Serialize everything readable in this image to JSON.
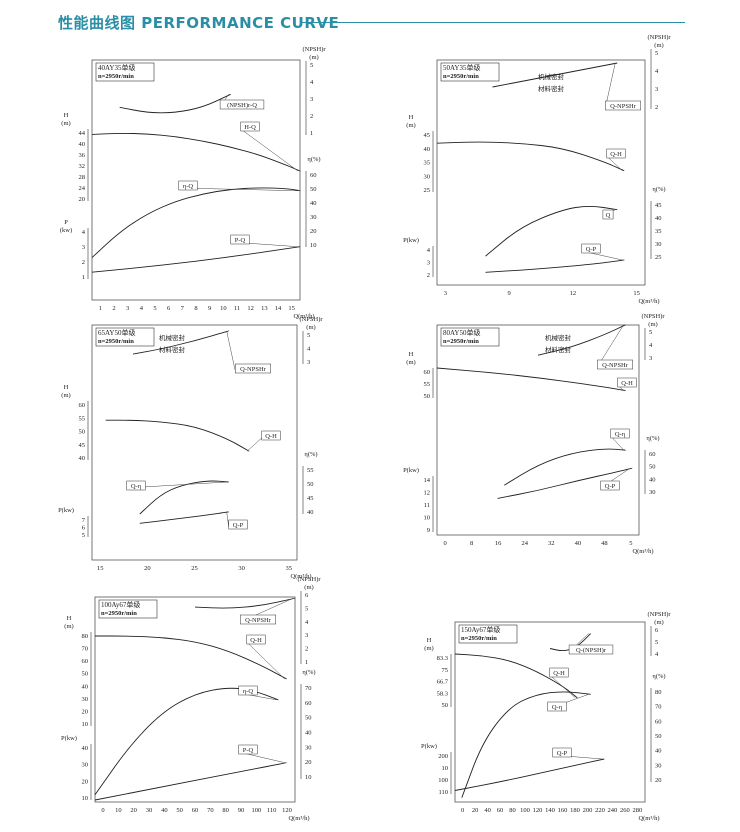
{
  "header": {
    "title": "性能曲线图  PERFORMANCE CURVE"
  },
  "chart_data": [
    {
      "type": "line",
      "model": "40AY35单级",
      "speed": "n=2950r/min",
      "xlabel": "Q(m³/h)",
      "x_ticks": [
        "1",
        "2",
        "3",
        "4",
        "5",
        "6",
        "7",
        "8",
        "9",
        "10",
        "11",
        "12",
        "13",
        "14",
        "15"
      ],
      "left_axes": [
        {
          "label": "H\n(m)",
          "ticks": [
            "44",
            "40",
            "36",
            "32",
            "28",
            "24",
            "20"
          ]
        },
        {
          "label": "P\n(kw)",
          "ticks": [
            "4",
            "3",
            "2",
            "1"
          ]
        }
      ],
      "right_axes": [
        {
          "label": "(NPSH)r\n(m)",
          "ticks": [
            "5",
            "4",
            "3",
            "2",
            "1"
          ]
        },
        {
          "label": "η(%)",
          "ticks": [
            "60",
            "50",
            "40",
            "30",
            "20",
            "10"
          ]
        }
      ],
      "series": [
        {
          "name": "(NPSH)r-Q",
          "x": [
            2,
            4,
            6,
            8,
            10
          ],
          "y": [
            2.5,
            2.2,
            2.2,
            2.5,
            3.2
          ]
        },
        {
          "name": "H-Q",
          "x": [
            0,
            2,
            4,
            6,
            8,
            10,
            12,
            14,
            15
          ],
          "y": [
            42.2,
            42.6,
            42.4,
            41.5,
            40,
            38,
            35.5,
            32,
            30
          ]
        },
        {
          "name": "η-Q",
          "x": [
            0,
            2,
            4,
            6,
            8,
            10,
            12,
            14,
            15
          ],
          "y": [
            3,
            20,
            32,
            40,
            45,
            48,
            49,
            48.5,
            47
          ]
        },
        {
          "name": "P-Q",
          "x": [
            0,
            5,
            10,
            15
          ],
          "y": [
            1.4,
            1.8,
            2.3,
            2.9
          ]
        }
      ]
    },
    {
      "type": "line",
      "model": "50AY35单级",
      "speed": "n=2950r/min",
      "xlabel": "Q(m³/h)",
      "x_ticks": [
        "3",
        "9",
        "12",
        "15"
      ],
      "left_axes": [
        {
          "label": "H\n(m)",
          "ticks": [
            "45",
            "40",
            "35",
            "30",
            "25"
          ]
        },
        {
          "label": "P(kw)",
          "ticks": [
            "4",
            "3",
            "2"
          ]
        }
      ],
      "right_axes": [
        {
          "label": "(NPSH)r\n(m)",
          "ticks": [
            "5",
            "4",
            "3",
            "2"
          ]
        },
        {
          "label": "η(%)",
          "ticks": [
            "45",
            "40",
            "35",
            "30",
            "25"
          ]
        }
      ],
      "annotations": [
        "机械密封",
        "材料密封"
      ],
      "series": [
        {
          "name": "Q-NPSHr",
          "x": [
            7,
            10,
            13,
            16
          ],
          "y": [
            3.1,
            3.5,
            3.9,
            4.3
          ]
        },
        {
          "name": "Q-H",
          "x": [
            3,
            6,
            9,
            12,
            15,
            16.5
          ],
          "y": [
            41,
            41.5,
            41,
            39.5,
            35,
            32
          ]
        },
        {
          "name": "Q",
          "x": [
            6.5,
            9,
            12,
            14,
            16
          ],
          "y": [
            26,
            36,
            42,
            43.5,
            42
          ]
        },
        {
          "name": "Q-P",
          "x": [
            6.5,
            10,
            14,
            16.5
          ],
          "y": [
            2.3,
            2.5,
            2.8,
            3.1
          ]
        }
      ]
    },
    {
      "type": "line",
      "model": "65AY50单级",
      "speed": "n=2950r/min",
      "xlabel": "Q(m³/h)",
      "x_ticks": [
        "15",
        "20",
        "25",
        "30",
        "35"
      ],
      "left_axes": [
        {
          "label": "H\n(m)",
          "ticks": [
            "60",
            "55",
            "50",
            "45",
            "40"
          ]
        },
        {
          "label": "P(kw)",
          "ticks": [
            "7",
            "6",
            "5"
          ]
        }
      ],
      "right_axes": [
        {
          "label": "(NPSH)r\n(m)",
          "ticks": [
            "5",
            "4",
            "3"
          ]
        },
        {
          "label": "η(%)",
          "ticks": [
            "55",
            "50",
            "45",
            "40"
          ]
        }
      ],
      "annotations": [
        "机械密封",
        "材料密封"
      ],
      "series": [
        {
          "name": "Q-NPSHr",
          "x": [
            16,
            20,
            25,
            30
          ],
          "y": [
            3.6,
            3.9,
            4.4,
            5.0
          ]
        },
        {
          "name": "Q-H",
          "x": [
            12,
            16,
            20,
            25,
            30,
            33
          ],
          "y": [
            53.5,
            53.5,
            53,
            51.5,
            47,
            43
          ]
        },
        {
          "name": "Q-η",
          "x": [
            17,
            20,
            23,
            27,
            30
          ],
          "y": [
            40,
            46,
            49,
            50.5,
            50
          ]
        },
        {
          "name": "Q-P",
          "x": [
            17,
            22,
            27,
            30
          ],
          "y": [
            6.3,
            6.7,
            7.1,
            7.4
          ]
        }
      ]
    },
    {
      "type": "line",
      "model": "80AY50单级",
      "speed": "n=2950r/min",
      "xlabel": "Q(m³/h)",
      "x_ticks": [
        "0",
        "8",
        "16",
        "24",
        "32",
        "40",
        "48",
        "5"
      ],
      "left_axes": [
        {
          "label": "H\n(m)",
          "ticks": [
            "60",
            "55",
            "50"
          ]
        },
        {
          "label": "P(kw)",
          "ticks": [
            "14",
            "12",
            "11",
            "10",
            "9"
          ]
        }
      ],
      "right_axes": [
        {
          "label": "(NPSH)r\n(m)",
          "ticks": [
            "5",
            "4",
            "3"
          ]
        },
        {
          "label": "η(%)",
          "ticks": [
            "60",
            "50",
            "40",
            "30"
          ]
        }
      ],
      "annotations": [
        "机械密封",
        "材料密封"
      ],
      "series": [
        {
          "name": "Q-NPSHr",
          "x": [
            30,
            40,
            50,
            56
          ],
          "y": [
            3.3,
            3.8,
            4.6,
            5.2
          ]
        },
        {
          "name": "Q-H",
          "x": [
            0,
            16,
            32,
            48,
            56
          ],
          "y": [
            60,
            58.5,
            56.5,
            54,
            52.5
          ]
        },
        {
          "name": "Q-η",
          "x": [
            20,
            30,
            40,
            50,
            56
          ],
          "y": [
            36,
            50,
            58,
            61,
            60
          ]
        },
        {
          "name": "Q-P",
          "x": [
            18,
            30,
            42,
            54,
            58
          ],
          "y": [
            12.0,
            12.7,
            13.6,
            14.4,
            14.7
          ]
        }
      ]
    },
    {
      "type": "line",
      "model": "100Ay67单级",
      "speed": "n=2950r/min",
      "xlabel": "Q(m³/h)",
      "x_ticks": [
        "0",
        "10",
        "20",
        "30",
        "40",
        "50",
        "60",
        "70",
        "80",
        "90",
        "100",
        "110",
        "120"
      ],
      "left_axes": [
        {
          "label": "H\n(m)",
          "ticks": [
            "80",
            "70",
            "60",
            "50",
            "40",
            "30",
            "20",
            "10"
          ]
        },
        {
          "label": "P(kw)",
          "ticks": [
            "40",
            "30",
            "20",
            "10"
          ]
        }
      ],
      "right_axes": [
        {
          "label": "(NPSH)r\n(m)",
          "ticks": [
            "6",
            "5",
            "4",
            "3",
            "2",
            "1"
          ]
        },
        {
          "label": "η(%)",
          "ticks": [
            "70",
            "60",
            "50",
            "40",
            "30",
            "20",
            "10"
          ]
        }
      ],
      "series": [
        {
          "name": "Q-NPSHr",
          "x": [
            60,
            80,
            100,
            120
          ],
          "y": [
            4.9,
            4.8,
            5.0,
            5.5
          ]
        },
        {
          "name": "Q-H",
          "x": [
            0,
            20,
            40,
            60,
            80,
            100,
            115
          ],
          "y": [
            77,
            77,
            76,
            73,
            66,
            55,
            45
          ]
        },
        {
          "name": "η-Q",
          "x": [
            0,
            20,
            40,
            60,
            80,
            95,
            110
          ],
          "y": [
            0,
            30,
            52,
            64,
            68,
            66,
            60
          ]
        },
        {
          "name": "P-Q",
          "x": [
            0,
            40,
            80,
            115
          ],
          "y": [
            10,
            17,
            24,
            30
          ]
        }
      ]
    },
    {
      "type": "line",
      "model": "150Ay67单级",
      "speed": "n=2950r/min",
      "xlabel": "Q(m³/h)",
      "x_ticks": [
        "0",
        "20",
        "40",
        "60",
        "80",
        "100",
        "120",
        "140",
        "160",
        "180",
        "200",
        "220",
        "240",
        "260",
        "280"
      ],
      "left_axes": [
        {
          "label": "H\n(m)",
          "ticks": [
            "83.3",
            "75",
            "66.7",
            "58.3",
            "50"
          ]
        },
        {
          "label": "P(kw)",
          "ticks": [
            "200",
            "10",
            "100",
            "110"
          ]
        }
      ],
      "right_axes": [
        {
          "label": "(NPSH)r\n(m)",
          "ticks": [
            "6",
            "5",
            "4"
          ]
        },
        {
          "label": "η(%)",
          "ticks": [
            "80",
            "70",
            "60",
            "50",
            "40",
            "30",
            "20"
          ]
        }
      ],
      "series": [
        {
          "name": "Q-(NPSH)r",
          "x": [
            140,
            160,
            180,
            200
          ],
          "y": [
            4.5,
            4.3,
            4.6,
            5.5
          ]
        },
        {
          "name": "Q-H",
          "x": [
            0,
            40,
            80,
            120,
            160,
            180
          ],
          "y": [
            84,
            83,
            80,
            73,
            63,
            56
          ]
        },
        {
          "name": "Q-η",
          "x": [
            10,
            40,
            80,
            120,
            160,
            200
          ],
          "y": [
            10,
            45,
            68,
            76,
            78,
            76
          ]
        },
        {
          "name": "Q-P",
          "x": [
            0,
            80,
            160,
            220
          ],
          "y": [
            1,
            4,
            7.5,
            10
          ]
        }
      ]
    }
  ]
}
